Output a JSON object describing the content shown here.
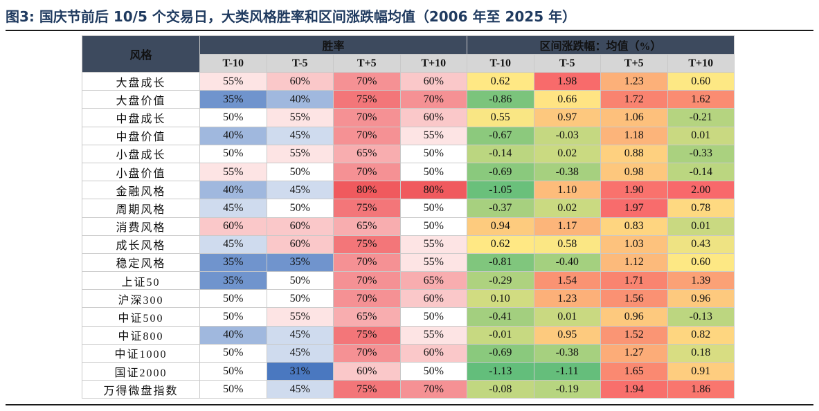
{
  "title": "图3:  国庆节前后 10/5 个交易日，大类风格胜率和区间涨跌幅均值（2006 年至 2025 年）",
  "header": {
    "style_label": "风格",
    "win_rate_label": "胜率",
    "return_label": "区间涨跌幅：均值（%）",
    "periods": [
      "T-10",
      "T-5",
      "T+5",
      "T+10"
    ]
  },
  "rows": [
    {
      "name": "大盘成长",
      "win": [
        "55%",
        "60%",
        "70%",
        "60%"
      ],
      "ret": [
        "0.62",
        "1.98",
        "1.23",
        "0.60"
      ]
    },
    {
      "name": "大盘价值",
      "win": [
        "35%",
        "40%",
        "75%",
        "70%"
      ],
      "ret": [
        "-0.86",
        "0.66",
        "1.72",
        "1.62"
      ]
    },
    {
      "name": "中盘成长",
      "win": [
        "50%",
        "55%",
        "70%",
        "60%"
      ],
      "ret": [
        "0.55",
        "0.97",
        "1.06",
        "-0.21"
      ]
    },
    {
      "name": "中盘价值",
      "win": [
        "40%",
        "45%",
        "70%",
        "55%"
      ],
      "ret": [
        "-0.67",
        "-0.03",
        "1.18",
        "0.01"
      ]
    },
    {
      "name": "小盘成长",
      "win": [
        "50%",
        "55%",
        "65%",
        "50%"
      ],
      "ret": [
        "-0.14",
        "0.02",
        "0.88",
        "-0.33"
      ]
    },
    {
      "name": "小盘价值",
      "win": [
        "55%",
        "50%",
        "70%",
        "50%"
      ],
      "ret": [
        "-0.69",
        "-0.38",
        "0.98",
        "-0.14"
      ]
    },
    {
      "name": "金融风格",
      "win": [
        "40%",
        "45%",
        "80%",
        "80%"
      ],
      "ret": [
        "-1.05",
        "1.10",
        "1.90",
        "2.00"
      ]
    },
    {
      "name": "周期风格",
      "win": [
        "45%",
        "50%",
        "75%",
        "50%"
      ],
      "ret": [
        "-0.37",
        "0.02",
        "1.97",
        "0.78"
      ]
    },
    {
      "name": "消费风格",
      "win": [
        "60%",
        "60%",
        "65%",
        "50%"
      ],
      "ret": [
        "0.94",
        "1.17",
        "0.83",
        "0.01"
      ]
    },
    {
      "name": "成长风格",
      "win": [
        "45%",
        "60%",
        "75%",
        "55%"
      ],
      "ret": [
        "0.62",
        "0.58",
        "1.03",
        "0.43"
      ]
    },
    {
      "name": "稳定风格",
      "win": [
        "35%",
        "35%",
        "70%",
        "55%"
      ],
      "ret": [
        "-0.81",
        "-0.40",
        "1.12",
        "0.60"
      ]
    },
    {
      "name": "上证50",
      "win": [
        "35%",
        "50%",
        "70%",
        "65%"
      ],
      "ret": [
        "-0.29",
        "1.54",
        "1.71",
        "1.39"
      ]
    },
    {
      "name": "沪深300",
      "win": [
        "50%",
        "50%",
        "70%",
        "60%"
      ],
      "ret": [
        "0.10",
        "1.23",
        "1.56",
        "0.96"
      ]
    },
    {
      "name": "中证500",
      "win": [
        "50%",
        "55%",
        "65%",
        "50%"
      ],
      "ret": [
        "-0.41",
        "0.01",
        "0.96",
        "-0.13"
      ]
    },
    {
      "name": "中证800",
      "win": [
        "40%",
        "45%",
        "75%",
        "55%"
      ],
      "ret": [
        "-0.01",
        "0.95",
        "1.52",
        "0.82"
      ]
    },
    {
      "name": "中证1000",
      "win": [
        "50%",
        "45%",
        "70%",
        "60%"
      ],
      "ret": [
        "-0.69",
        "-0.38",
        "1.27",
        "0.18"
      ]
    },
    {
      "name": "国证2000",
      "win": [
        "50%",
        "31%",
        "60%",
        "50%"
      ],
      "ret": [
        "-1.13",
        "-1.11",
        "1.65",
        "0.91"
      ]
    },
    {
      "name": "万得微盘指数",
      "win": [
        "50%",
        "45%",
        "75%",
        "70%"
      ],
      "ret": [
        "-0.08",
        "-0.19",
        "1.94",
        "1.86"
      ]
    }
  ],
  "colors": {
    "header_bg": "#3d4a5e",
    "subheader_bg": "#d6d6d6",
    "win_low": "#4a78c0",
    "win_mid": "#ffffff",
    "win_high": "#f05a5e",
    "ret_low": "#63be7b",
    "ret_mid": "#ffe884",
    "ret_high": "#f8696b"
  }
}
